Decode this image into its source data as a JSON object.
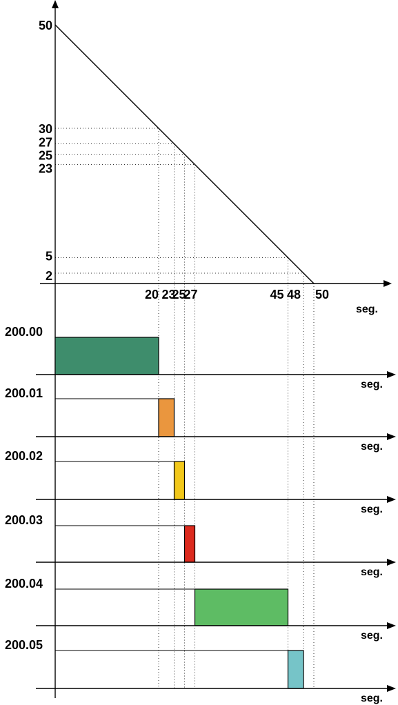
{
  "chart_data": {
    "type": "line",
    "top_chart": {
      "line": [
        [
          0,
          50
        ],
        [
          50,
          0
        ]
      ],
      "y_ticks": [
        "50",
        "30",
        "27",
        "25",
        "23",
        "5",
        "2"
      ],
      "y_tick_values": [
        50,
        30,
        27,
        25,
        23,
        5,
        2
      ],
      "x_ticks": [
        "20",
        "23",
        "25",
        "27",
        "45",
        "48",
        "50"
      ],
      "x_tick_values": [
        20,
        23,
        25,
        27,
        45,
        48,
        50
      ],
      "x_unit": "seg.",
      "guides": [
        {
          "x": 20,
          "y": 30
        },
        {
          "x": 23,
          "y": 27
        },
        {
          "x": 25,
          "y": 25
        },
        {
          "x": 27,
          "y": 23
        },
        {
          "x": 45,
          "y": 5
        },
        {
          "x": 48,
          "y": 2
        }
      ]
    },
    "bars": [
      {
        "label": "200.00",
        "start": 0,
        "end": 20,
        "color": "#3e8d6c"
      },
      {
        "label": "200.01",
        "start": 20,
        "end": 23,
        "color": "#ea963e"
      },
      {
        "label": "200.02",
        "start": 23,
        "end": 25,
        "color": "#f2c81a"
      },
      {
        "label": "200.03",
        "start": 25,
        "end": 27,
        "color": "#dc2a1e"
      },
      {
        "label": "200.04",
        "start": 27,
        "end": 45,
        "color": "#5ebc64"
      },
      {
        "label": "200.05",
        "start": 45,
        "end": 48,
        "color": "#76c4c8"
      }
    ],
    "bar_x_unit": "seg."
  }
}
